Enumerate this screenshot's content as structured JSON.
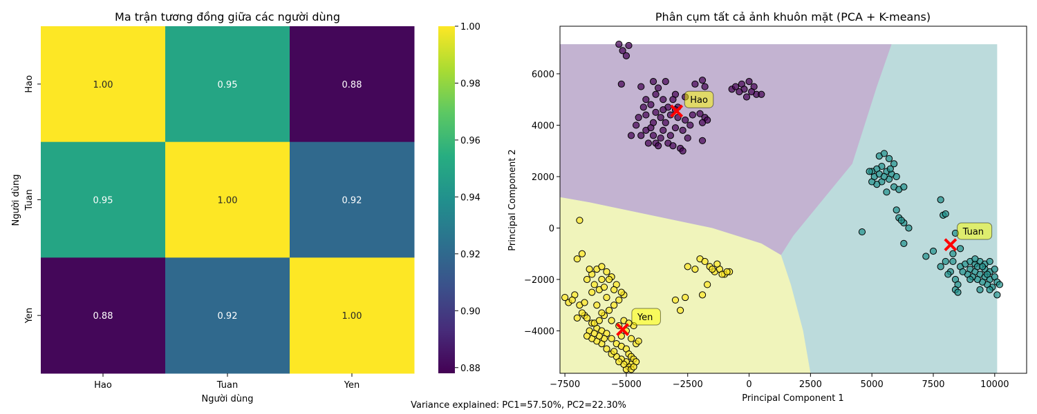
{
  "figure": {
    "footer": "Variance explained: PC1=57.50%, PC2=22.30%"
  },
  "chart_data": [
    {
      "type": "heatmap",
      "title": "Ma trận tương đồng giữa các người dùng",
      "xlabel": "Người dùng",
      "ylabel": "Người dùng",
      "x_categories": [
        "Hao",
        "Tuan",
        "Yen"
      ],
      "y_categories": [
        "Hao",
        "Tuan",
        "Yen"
      ],
      "values": [
        [
          1.0,
          0.95,
          0.88
        ],
        [
          0.95,
          1.0,
          0.92
        ],
        [
          0.88,
          0.92,
          1.0
        ]
      ],
      "cell_labels": [
        [
          "1.00",
          "0.95",
          "0.88"
        ],
        [
          "0.95",
          "1.00",
          "0.92"
        ],
        [
          "0.88",
          "0.92",
          "1.00"
        ]
      ],
      "colormap": "viridis",
      "colorbar": {
        "range": [
          0.878,
          1.0
        ],
        "ticks": [
          "0.88",
          "0.90",
          "0.92",
          "0.94",
          "0.96",
          "0.98",
          "1.00"
        ]
      }
    },
    {
      "type": "scatter",
      "title": "Phân cụm tất cả ảnh khuôn mặt (PCA + K-means)",
      "xlabel": "Principal Component 1",
      "ylabel": "Principal Component 2",
      "xlim": [
        -7700,
        11300
      ],
      "ylim": [
        -5650,
        7850
      ],
      "xticks": [
        "−7500",
        "−5000",
        "−2500",
        "0",
        "2500",
        "5000",
        "7500",
        "10000"
      ],
      "yticks": [
        "−4000",
        "−2000",
        "0",
        "2000",
        "4000",
        "6000"
      ],
      "clusters": [
        {
          "name": "Hao",
          "color": "#440154",
          "region_color": "#c3b3d1",
          "centroid": [
            -2950,
            4550
          ],
          "label_pos": [
            -2400,
            5000
          ]
        },
        {
          "name": "Tuan",
          "color": "#21918c",
          "region_color": "#bcdbdc",
          "centroid": [
            8200,
            -650
          ],
          "label_pos": [
            8700,
            -120
          ]
        },
        {
          "name": "Yen",
          "color": "#fde725",
          "region_color": "#f0f4bb",
          "centroid": [
            -5150,
            -3950
          ],
          "label_pos": [
            -4550,
            -3450
          ]
        }
      ],
      "region_extent": {
        "x": [
          -7700,
          10100
        ],
        "y": [
          -5650,
          7150
        ]
      },
      "hao_region_lower_boundary": [
        [
          -7700,
          1200
        ],
        [
          -6500,
          1000
        ],
        [
          -4000,
          500
        ],
        [
          -1500,
          0
        ],
        [
          500,
          -600
        ],
        [
          1300,
          -1050
        ]
      ],
      "hao_tuan_boundary": [
        [
          1300,
          -1050
        ],
        [
          1800,
          -300
        ],
        [
          4200,
          2500
        ],
        [
          5200,
          5500
        ],
        [
          5800,
          7150
        ]
      ],
      "yen_tuan_boundary": [
        [
          1300,
          -1050
        ],
        [
          1700,
          -2200
        ],
        [
          2200,
          -4000
        ],
        [
          2500,
          -5650
        ]
      ],
      "points": {
        "Hao": [
          [
            -5300,
            7150
          ],
          [
            -5150,
            6900
          ],
          [
            -5000,
            6700
          ],
          [
            -4900,
            7100
          ],
          [
            -5200,
            5600
          ],
          [
            -4400,
            5500
          ],
          [
            -3900,
            5700
          ],
          [
            -3700,
            5450
          ],
          [
            -3400,
            5700
          ],
          [
            -3000,
            5200
          ],
          [
            -2200,
            5600
          ],
          [
            -1900,
            5750
          ],
          [
            -1800,
            5500
          ],
          [
            -3800,
            5200
          ],
          [
            -4200,
            5000
          ],
          [
            -3500,
            5000
          ],
          [
            -4000,
            4800
          ],
          [
            -3300,
            4700
          ],
          [
            -3200,
            4400
          ],
          [
            -2900,
            4300
          ],
          [
            -2600,
            4200
          ],
          [
            -2300,
            4400
          ],
          [
            -2000,
            4450
          ],
          [
            -1800,
            4300
          ],
          [
            -1700,
            4200
          ],
          [
            -1900,
            4100
          ],
          [
            -3600,
            4300
          ],
          [
            -3900,
            4100
          ],
          [
            -4200,
            4400
          ],
          [
            -4500,
            4300
          ],
          [
            -4600,
            4000
          ],
          [
            -4200,
            3800
          ],
          [
            -3900,
            3600
          ],
          [
            -3600,
            3500
          ],
          [
            -3300,
            3300
          ],
          [
            -3100,
            3200
          ],
          [
            -2800,
            3100
          ],
          [
            -2700,
            3000
          ],
          [
            -3500,
            3800
          ],
          [
            -3800,
            3300
          ],
          [
            -4400,
            3600
          ],
          [
            -4000,
            3900
          ],
          [
            -3400,
            4100
          ],
          [
            -3000,
            3900
          ],
          [
            -2700,
            3800
          ],
          [
            -2500,
            3500
          ],
          [
            -1900,
            3400
          ],
          [
            -700,
            5400
          ],
          [
            -550,
            5500
          ],
          [
            -300,
            5600
          ],
          [
            -200,
            5400
          ],
          [
            0,
            5700
          ],
          [
            200,
            5500
          ],
          [
            300,
            5200
          ],
          [
            500,
            5200
          ],
          [
            100,
            5300
          ],
          [
            -100,
            5100
          ],
          [
            -400,
            5300
          ],
          [
            -3700,
            3200
          ],
          [
            -3200,
            3600
          ],
          [
            -2900,
            4700
          ],
          [
            -2400,
            4000
          ],
          [
            -4800,
            3600
          ],
          [
            -4100,
            3300
          ],
          [
            -3500,
            4600
          ],
          [
            -3100,
            5000
          ],
          [
            -2600,
            5100
          ],
          [
            -4300,
            4700
          ],
          [
            -3800,
            4500
          ],
          [
            -3000,
            4600
          ]
        ],
        "Tuan": [
          [
            5300,
            2800
          ],
          [
            5500,
            2900
          ],
          [
            5700,
            2700
          ],
          [
            5900,
            2500
          ],
          [
            5400,
            2400
          ],
          [
            5200,
            2300
          ],
          [
            5000,
            2200
          ],
          [
            5600,
            2200
          ],
          [
            5800,
            2100
          ],
          [
            6000,
            2000
          ],
          [
            5700,
            1900
          ],
          [
            5400,
            1800
          ],
          [
            5200,
            1700
          ],
          [
            5000,
            1800
          ],
          [
            5900,
            1600
          ],
          [
            6100,
            1500
          ],
          [
            5600,
            1400
          ],
          [
            6300,
            1600
          ],
          [
            4900,
            2200
          ],
          [
            5100,
            2000
          ],
          [
            5300,
            2100
          ],
          [
            5500,
            2000
          ],
          [
            5750,
            2300
          ],
          [
            6000,
            700
          ],
          [
            6100,
            400
          ],
          [
            6300,
            200
          ],
          [
            6500,
            0
          ],
          [
            6200,
            300
          ],
          [
            6300,
            -600
          ],
          [
            4600,
            -150
          ],
          [
            7800,
            1100
          ],
          [
            7900,
            500
          ],
          [
            8000,
            550
          ],
          [
            8400,
            -200
          ],
          [
            8600,
            -800
          ],
          [
            8300,
            -1000
          ],
          [
            8000,
            -1300
          ],
          [
            7800,
            -1500
          ],
          [
            7500,
            -900
          ],
          [
            7200,
            -1100
          ],
          [
            8200,
            -1700
          ],
          [
            8100,
            -1800
          ],
          [
            8400,
            -2000
          ],
          [
            8500,
            -2200
          ],
          [
            8400,
            -2400
          ],
          [
            8600,
            -1500
          ],
          [
            8800,
            -1400
          ],
          [
            9000,
            -1300
          ],
          [
            9200,
            -1400
          ],
          [
            9400,
            -1300
          ],
          [
            9600,
            -1400
          ],
          [
            9800,
            -1300
          ],
          [
            9000,
            -1600
          ],
          [
            9200,
            -1700
          ],
          [
            9400,
            -1800
          ],
          [
            9600,
            -1900
          ],
          [
            9800,
            -2000
          ],
          [
            10000,
            -1900
          ],
          [
            10100,
            -2100
          ],
          [
            10200,
            -2200
          ],
          [
            9900,
            -2300
          ],
          [
            9700,
            -2200
          ],
          [
            9500,
            -2100
          ],
          [
            9300,
            -2000
          ],
          [
            9100,
            -1900
          ],
          [
            8900,
            -1800
          ],
          [
            9600,
            -1600
          ],
          [
            9800,
            -1700
          ],
          [
            10000,
            -1600
          ],
          [
            10100,
            -2600
          ],
          [
            9800,
            -2400
          ],
          [
            9400,
            -2400
          ],
          [
            9200,
            -1200
          ],
          [
            8300,
            -1300
          ],
          [
            8500,
            -2500
          ],
          [
            8700,
            -1700
          ],
          [
            9000,
            -2000
          ],
          [
            9300,
            -1500
          ],
          [
            9500,
            -1500
          ],
          [
            9700,
            -1800
          ]
        ],
        "Yen": [
          [
            -7500,
            -2700
          ],
          [
            -7350,
            -2900
          ],
          [
            -7100,
            -2600
          ],
          [
            -7000,
            -3500
          ],
          [
            -6900,
            -3000
          ],
          [
            -6700,
            -3400
          ],
          [
            -6600,
            -3500
          ],
          [
            -6400,
            -3700
          ],
          [
            -6200,
            -3900
          ],
          [
            -6000,
            -4000
          ],
          [
            -5800,
            -4100
          ],
          [
            -5600,
            -4300
          ],
          [
            -5400,
            -4500
          ],
          [
            -5200,
            -4600
          ],
          [
            -5000,
            -4700
          ],
          [
            -4900,
            -4900
          ],
          [
            -4800,
            -5000
          ],
          [
            -4700,
            -5100
          ],
          [
            -4800,
            -5300
          ],
          [
            -4900,
            -5400
          ],
          [
            -5000,
            -5200
          ],
          [
            -5200,
            -5100
          ],
          [
            -5400,
            -5000
          ],
          [
            -5600,
            -4900
          ],
          [
            -5800,
            -4700
          ],
          [
            -6000,
            -4500
          ],
          [
            -6200,
            -4400
          ],
          [
            -6400,
            -4300
          ],
          [
            -6500,
            -4000
          ],
          [
            -6300,
            -3700
          ],
          [
            -6100,
            -3600
          ],
          [
            -5900,
            -3400
          ],
          [
            -5700,
            -3200
          ],
          [
            -5500,
            -3000
          ],
          [
            -5300,
            -2800
          ],
          [
            -5100,
            -2600
          ],
          [
            -6600,
            -2000
          ],
          [
            -6400,
            -1800
          ],
          [
            -6200,
            -1600
          ],
          [
            -6000,
            -1500
          ],
          [
            -5800,
            -1700
          ],
          [
            -5600,
            -1900
          ],
          [
            -5400,
            -2200
          ],
          [
            -5200,
            -2500
          ],
          [
            -6100,
            -2400
          ],
          [
            -6300,
            -2200
          ],
          [
            -6500,
            -1600
          ],
          [
            -6800,
            -1000
          ],
          [
            -7000,
            -1200
          ],
          [
            -6900,
            300
          ],
          [
            -5700,
            -2000
          ],
          [
            -5900,
            -2300
          ],
          [
            -6200,
            -3000
          ],
          [
            -6000,
            -3300
          ],
          [
            -5600,
            -3600
          ],
          [
            -5300,
            -3800
          ],
          [
            -5000,
            -4000
          ],
          [
            -4800,
            -4300
          ],
          [
            -4600,
            -4500
          ],
          [
            -4500,
            -4400
          ],
          [
            -4700,
            -3800
          ],
          [
            -5100,
            -3600
          ],
          [
            -2000,
            -1200
          ],
          [
            -1800,
            -1300
          ],
          [
            -1600,
            -1500
          ],
          [
            -1400,
            -1700
          ],
          [
            -1200,
            -1600
          ],
          [
            -1000,
            -1800
          ],
          [
            -800,
            -1700
          ],
          [
            -2200,
            -1600
          ],
          [
            -2500,
            -1500
          ],
          [
            -2600,
            -2700
          ],
          [
            -3000,
            -2800
          ],
          [
            -2800,
            -3200
          ],
          [
            -1900,
            -2600
          ],
          [
            -1700,
            -2200
          ],
          [
            -1500,
            -1600
          ],
          [
            -1300,
            -1400
          ],
          [
            -1100,
            -1800
          ],
          [
            -900,
            -1700
          ],
          [
            -5000,
            -5500
          ],
          [
            -4800,
            -5500
          ],
          [
            -5100,
            -5300
          ],
          [
            -5300,
            -5200
          ],
          [
            -5500,
            -4800
          ],
          [
            -4600,
            -5200
          ],
          [
            -4700,
            -5400
          ],
          [
            -5900,
            -4300
          ],
          [
            -6100,
            -4200
          ],
          [
            -6300,
            -4100
          ],
          [
            -6800,
            -3300
          ],
          [
            -7200,
            -2800
          ],
          [
            -6700,
            -2900
          ],
          [
            -6400,
            -2500
          ],
          [
            -5800,
            -2700
          ],
          [
            -5500,
            -2400
          ],
          [
            -6600,
            -4200
          ],
          [
            -6000,
            -2000
          ],
          [
            -4900,
            -3700
          ],
          [
            -5200,
            -4200
          ]
        ]
      }
    }
  ]
}
